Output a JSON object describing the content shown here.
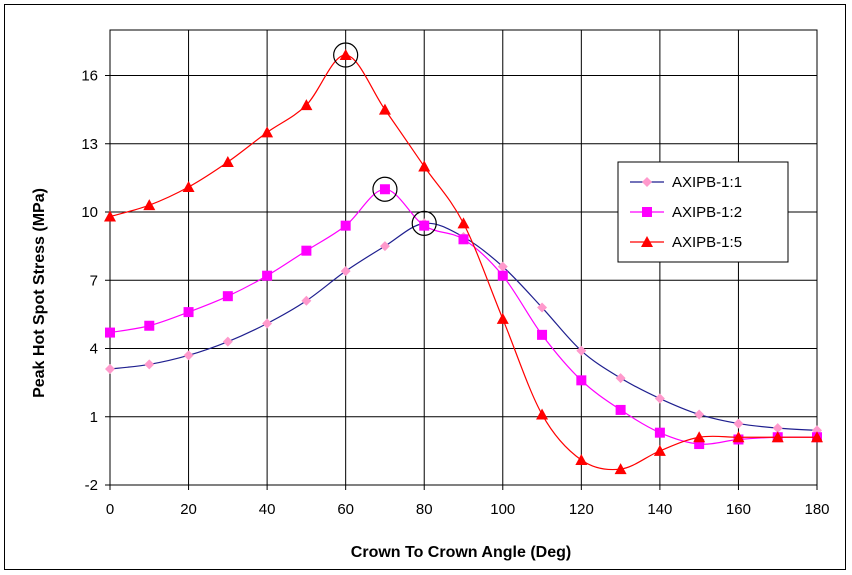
{
  "chart_data": {
    "type": "line",
    "title": "",
    "xlabel": "Crown To Crown Angle (Deg)",
    "ylabel": "Peak Hot Spot Stress (MPa)",
    "xlim": [
      0,
      180
    ],
    "ylim": [
      -2,
      18
    ],
    "x_ticks": [
      0,
      20,
      40,
      60,
      80,
      100,
      120,
      140,
      160,
      180
    ],
    "y_ticks": [
      -2,
      1,
      4,
      7,
      10,
      13,
      16
    ],
    "grid": true,
    "legend_position": "right",
    "x": [
      0,
      10,
      20,
      30,
      40,
      50,
      60,
      70,
      80,
      90,
      100,
      110,
      120,
      130,
      140,
      150,
      160,
      170,
      180
    ],
    "series": [
      {
        "name": "AXIPB-1:1",
        "color": "#1f1f8f",
        "marker_color": "#ff99cc",
        "marker": "diamond",
        "values": [
          3.1,
          3.3,
          3.7,
          4.3,
          5.1,
          6.1,
          7.4,
          8.5,
          9.5,
          8.9,
          7.6,
          5.8,
          3.9,
          2.7,
          1.8,
          1.1,
          0.7,
          0.5,
          0.4
        ]
      },
      {
        "name": "AXIPB-1:2",
        "color": "#ff00ff",
        "marker_color": "#ff00ff",
        "marker": "square",
        "values": [
          4.7,
          5.0,
          5.6,
          6.3,
          7.2,
          8.3,
          9.4,
          11.0,
          9.4,
          8.8,
          7.2,
          4.6,
          2.6,
          1.3,
          0.3,
          -0.2,
          0.0,
          0.1,
          0.1
        ]
      },
      {
        "name": "AXIPB-1:5",
        "color": "#ff0000",
        "marker_color": "#ff0000",
        "marker": "triangle",
        "values": [
          9.8,
          10.3,
          11.1,
          12.2,
          13.5,
          14.7,
          16.9,
          14.5,
          12.0,
          9.5,
          5.3,
          1.1,
          -0.9,
          -1.3,
          -0.5,
          0.1,
          0.1,
          0.1,
          0.1
        ]
      }
    ],
    "circled_points": [
      {
        "series": "AXIPB-1:5",
        "x": 60,
        "y": 16.9
      },
      {
        "series": "AXIPB-1:2",
        "x": 70,
        "y": 11.0
      },
      {
        "series": "AXIPB-1:1",
        "x": 80,
        "y": 9.5
      }
    ]
  }
}
